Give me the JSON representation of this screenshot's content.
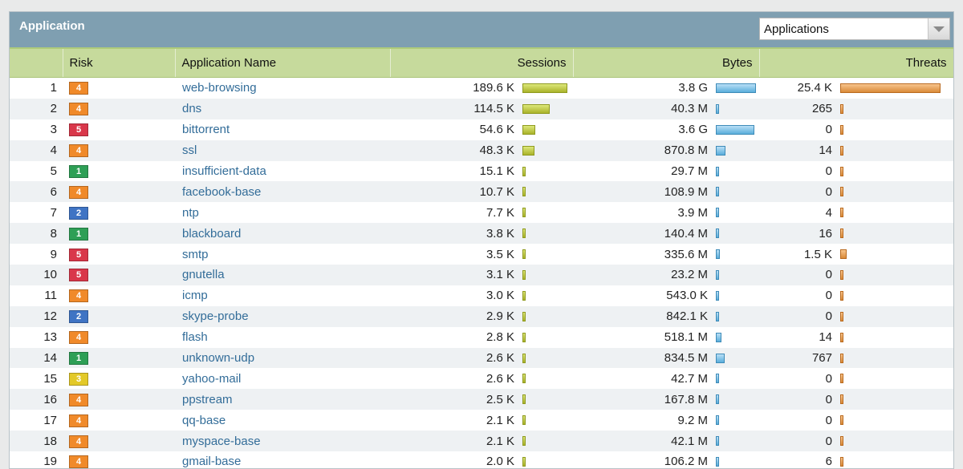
{
  "header": {
    "title": "Application",
    "select_value": "Applications"
  },
  "columns": {
    "risk": "Risk",
    "name": "Application Name",
    "sessions": "Sessions",
    "bytes": "Bytes",
    "threats": "Threats"
  },
  "risk_colors": {
    "1": "#2e9f56",
    "2": "#3f74c4",
    "3": "#e3c928",
    "4": "#f08a2a",
    "5": "#d9374a"
  },
  "rows": [
    {
      "rank": "1",
      "risk": "4",
      "name": "web-browsing",
      "sessions": "189.6 K",
      "bytes": "3.8 G",
      "threats": "25.4 K",
      "sessions_frac": 1.0,
      "bytes_frac": 1.0,
      "threats_frac": 1.0
    },
    {
      "rank": "2",
      "risk": "4",
      "name": "dns",
      "sessions": "114.5 K",
      "bytes": "40.3 M",
      "threats": "265",
      "sessions_frac": 0.6,
      "bytes_frac": 0.01,
      "threats_frac": 0.01
    },
    {
      "rank": "3",
      "risk": "5",
      "name": "bittorrent",
      "sessions": "54.6 K",
      "bytes": "3.6 G",
      "threats": "0",
      "sessions_frac": 0.29,
      "bytes_frac": 0.95,
      "threats_frac": 0
    },
    {
      "rank": "4",
      "risk": "4",
      "name": "ssl",
      "sessions": "48.3 K",
      "bytes": "870.8 M",
      "threats": "14",
      "sessions_frac": 0.26,
      "bytes_frac": 0.23,
      "threats_frac": 0
    },
    {
      "rank": "5",
      "risk": "1",
      "name": "insufficient-data",
      "sessions": "15.1 K",
      "bytes": "29.7 M",
      "threats": "0",
      "sessions_frac": 0.08,
      "bytes_frac": 0.01,
      "threats_frac": 0
    },
    {
      "rank": "6",
      "risk": "4",
      "name": "facebook-base",
      "sessions": "10.7 K",
      "bytes": "108.9 M",
      "threats": "0",
      "sessions_frac": 0.06,
      "bytes_frac": 0.03,
      "threats_frac": 0
    },
    {
      "rank": "7",
      "risk": "2",
      "name": "ntp",
      "sessions": "7.7 K",
      "bytes": "3.9 M",
      "threats": "4",
      "sessions_frac": 0.04,
      "bytes_frac": 0.0,
      "threats_frac": 0
    },
    {
      "rank": "8",
      "risk": "1",
      "name": "blackboard",
      "sessions": "3.8 K",
      "bytes": "140.4 M",
      "threats": "16",
      "sessions_frac": 0.02,
      "bytes_frac": 0.04,
      "threats_frac": 0
    },
    {
      "rank": "9",
      "risk": "5",
      "name": "smtp",
      "sessions": "3.5 K",
      "bytes": "335.6 M",
      "threats": "1.5 K",
      "sessions_frac": 0.02,
      "bytes_frac": 0.09,
      "threats_frac": 0.06
    },
    {
      "rank": "10",
      "risk": "5",
      "name": "gnutella",
      "sessions": "3.1 K",
      "bytes": "23.2 M",
      "threats": "0",
      "sessions_frac": 0.02,
      "bytes_frac": 0.01,
      "threats_frac": 0
    },
    {
      "rank": "11",
      "risk": "4",
      "name": "icmp",
      "sessions": "3.0 K",
      "bytes": "543.0 K",
      "threats": "0",
      "sessions_frac": 0.02,
      "bytes_frac": 0.0,
      "threats_frac": 0
    },
    {
      "rank": "12",
      "risk": "2",
      "name": "skype-probe",
      "sessions": "2.9 K",
      "bytes": "842.1 K",
      "threats": "0",
      "sessions_frac": 0.02,
      "bytes_frac": 0.0,
      "threats_frac": 0
    },
    {
      "rank": "13",
      "risk": "4",
      "name": "flash",
      "sessions": "2.8 K",
      "bytes": "518.1 M",
      "threats": "14",
      "sessions_frac": 0.01,
      "bytes_frac": 0.14,
      "threats_frac": 0
    },
    {
      "rank": "14",
      "risk": "1",
      "name": "unknown-udp",
      "sessions": "2.6 K",
      "bytes": "834.5 M",
      "threats": "767",
      "sessions_frac": 0.01,
      "bytes_frac": 0.22,
      "threats_frac": 0.03
    },
    {
      "rank": "15",
      "risk": "3",
      "name": "yahoo-mail",
      "sessions": "2.6 K",
      "bytes": "42.7 M",
      "threats": "0",
      "sessions_frac": 0.01,
      "bytes_frac": 0.01,
      "threats_frac": 0
    },
    {
      "rank": "16",
      "risk": "4",
      "name": "ppstream",
      "sessions": "2.5 K",
      "bytes": "167.8 M",
      "threats": "0",
      "sessions_frac": 0.01,
      "bytes_frac": 0.04,
      "threats_frac": 0
    },
    {
      "rank": "17",
      "risk": "4",
      "name": "qq-base",
      "sessions": "2.1 K",
      "bytes": "9.2 M",
      "threats": "0",
      "sessions_frac": 0.01,
      "bytes_frac": 0.0,
      "threats_frac": 0
    },
    {
      "rank": "18",
      "risk": "4",
      "name": "myspace-base",
      "sessions": "2.1 K",
      "bytes": "42.1 M",
      "threats": "0",
      "sessions_frac": 0.01,
      "bytes_frac": 0.01,
      "threats_frac": 0
    },
    {
      "rank": "19",
      "risk": "4",
      "name": "gmail-base",
      "sessions": "2.0 K",
      "bytes": "106.2 M",
      "threats": "6",
      "sessions_frac": 0.01,
      "bytes_frac": 0.03,
      "threats_frac": 0
    }
  ]
}
